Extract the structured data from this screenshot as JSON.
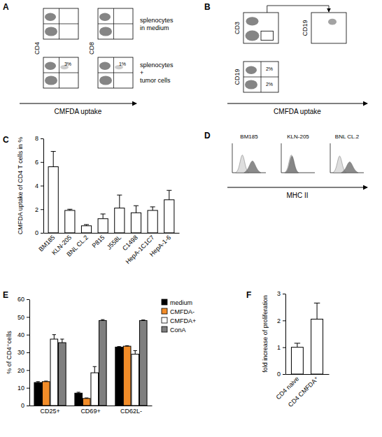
{
  "chart_data": [
    {
      "type": "bar",
      "title": "C",
      "y_label": "CMFDA uptake of CD4 T cells in %",
      "categories": [
        "BM185",
        "KLN-205",
        "BNL CL.2",
        "P815",
        "J558L",
        "C1498",
        "HepA-1C1C7",
        "HepA-1-6"
      ],
      "values": [
        5.6,
        1.9,
        0.6,
        1.2,
        2.1,
        1.7,
        1.9,
        2.8
      ],
      "errors": [
        1.3,
        0.1,
        0.1,
        0.4,
        1.1,
        0.6,
        0.3,
        0.8
      ],
      "color": "#ffffff",
      "ylim": [
        0,
        8
      ],
      "yticks": [
        0,
        2,
        4,
        6,
        8
      ]
    },
    {
      "type": "bar",
      "title": "E",
      "y_label": "% of CD4⁺cells",
      "categories": [
        "CD25+",
        "CD69+",
        "CD62L-"
      ],
      "series": [
        {
          "name": "medium",
          "color": "#000000",
          "values": [
            13,
            7,
            33
          ],
          "errors": [
            0.5,
            0.5,
            0.3
          ]
        },
        {
          "name": "CMFDA-",
          "color": "#f28c28",
          "values": [
            13.5,
            4,
            33.5
          ],
          "errors": [
            0.3,
            0.3,
            0.3
          ]
        },
        {
          "name": "CMFDA+",
          "color": "#ffffff",
          "values": [
            37.5,
            18.5,
            29
          ],
          "errors": [
            2.5,
            3.5,
            2
          ]
        },
        {
          "name": "ConA",
          "color": "#7f7f7f",
          "values": [
            35.5,
            48,
            48
          ],
          "errors": [
            2,
            0.5,
            0.3
          ]
        }
      ],
      "ylim": [
        0,
        60
      ],
      "yticks": [
        0,
        10,
        20,
        30,
        40,
        50,
        60
      ],
      "legend": "right"
    },
    {
      "type": "bar",
      "title": "F",
      "y_label": "fold increase of proliferation",
      "categories": [
        "CD4 naive",
        "CD4 CMFDA⁺"
      ],
      "values": [
        1,
        2.05
      ],
      "errors": [
        0.15,
        0.6
      ],
      "color": "#ffffff",
      "ylim": [
        0,
        3
      ],
      "yticks": [
        0,
        1,
        2,
        3
      ]
    }
  ],
  "flow_panels": [
    {
      "type": "dot_plot",
      "title": "A",
      "x_label": "CMFDA uptake",
      "y_labels": [
        "CD4",
        "CD8"
      ],
      "rows": [
        {
          "label": [
            "splenocytes",
            "in medium"
          ]
        },
        {
          "label": [
            "splenocytes",
            "+",
            "tumor cells"
          ],
          "gate_labels": [
            "3%",
            "1%"
          ]
        }
      ]
    },
    {
      "type": "dot_plot",
      "title": "B",
      "x_label": "CMFDA uptake",
      "y_labels": [
        "CD3",
        "CD19",
        "CD19"
      ],
      "gate_labels": [
        "2%",
        "2%"
      ]
    },
    {
      "type": "histogram",
      "title": "D",
      "x_label": "MHC II",
      "titles": [
        "BM185",
        "KLN-205",
        "BNL CL.2"
      ]
    }
  ]
}
